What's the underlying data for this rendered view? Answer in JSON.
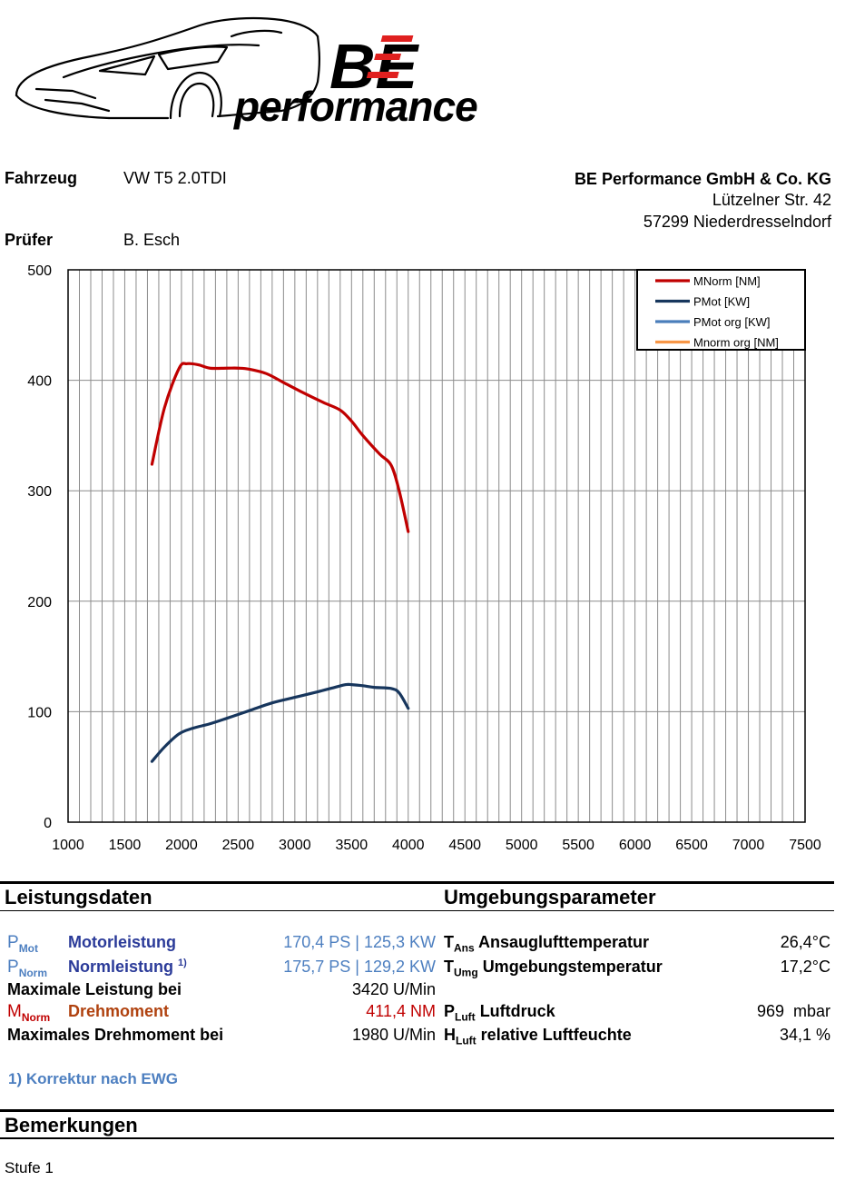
{
  "logo": {
    "monogram": "BE",
    "wordmark": "performance"
  },
  "header": {
    "vehicle_label": "Fahrzeug",
    "vehicle_value": "VW T5 2.0TDI",
    "tester_label": "Prüfer",
    "tester_value": "B. Esch",
    "company": {
      "name": "BE Performance GmbH & Co. KG",
      "street": "Lützelner Str. 42",
      "city": "57299 Niederdresselndorf"
    }
  },
  "chart_data": {
    "type": "line",
    "xlim": [
      1000,
      7500
    ],
    "ylim": [
      0,
      500
    ],
    "x_ticks": [
      "1000",
      "1500",
      "2000",
      "2500",
      "3000",
      "3500",
      "4000",
      "4500",
      "5000",
      "5500",
      "6000",
      "6500",
      "7000",
      "7500"
    ],
    "y_ticks": [
      "0",
      "100",
      "200",
      "300",
      "400",
      "500"
    ],
    "grid": true,
    "legend_position": "top-right",
    "legend": [
      "MNorm [NM]",
      "PMot [KW]",
      "PMot org [KW]",
      "Mnorm org [NM]"
    ],
    "colors": {
      "MNorm": "#c00000",
      "PMot": "#17365d",
      "PMot_org": "#4a7ebb",
      "Mnorm_org": "#f79646"
    },
    "series": [
      {
        "name": "MNorm [NM]",
        "x": [
          1740,
          1850,
          1980,
          2050,
          2150,
          2250,
          2400,
          2500,
          2600,
          2750,
          2900,
          3050,
          3250,
          3400,
          3500,
          3600,
          3750,
          3850,
          3920,
          4000
        ],
        "y": [
          324,
          375,
          411,
          415,
          414,
          411,
          411,
          411,
          410,
          406,
          398,
          390,
          380,
          373,
          363,
          350,
          333,
          323,
          300,
          263
        ]
      },
      {
        "name": "PMot [KW]",
        "x": [
          1740,
          1850,
          1980,
          2100,
          2250,
          2400,
          2600,
          2800,
          3000,
          3200,
          3350,
          3450,
          3500,
          3600,
          3700,
          3850,
          3920,
          4000
        ],
        "y": [
          55,
          68,
          80,
          85,
          89,
          94,
          101,
          108,
          113,
          118,
          122,
          124.5,
          124.5,
          123.5,
          122,
          121,
          117,
          103
        ]
      },
      {
        "name": "PMot org [KW]",
        "x": [],
        "y": []
      },
      {
        "name": "Mnorm org [NM]",
        "x": [],
        "y": []
      }
    ]
  },
  "performance": {
    "title": "Leistungsdaten",
    "pmot": {
      "sym": "P",
      "sub": "Mot",
      "label": "Motorleistung",
      "value": "170,4 PS | 125,3 KW"
    },
    "pnorm": {
      "sym": "P",
      "sub": "Norm",
      "label": "Normleistung",
      "sup": "1)",
      "value": "175,7 PS | 129,2 KW"
    },
    "max_power_label": "Maximale Leistung bei",
    "max_power_value": "3420 U/Min",
    "mnorm": {
      "sym": "M",
      "sub": "Norm",
      "label": "Drehmoment",
      "value": "411,4 NM"
    },
    "max_torque_label": "Maximales Drehmoment bei",
    "max_torque_value": "1980 U/Min",
    "footnote": "1) Korrektur nach EWG"
  },
  "environment": {
    "title": "Umgebungsparameter",
    "tans": {
      "sym": "T",
      "sub": "Ans",
      "label": "Ansauglufttemperatur",
      "value": "26,4°C"
    },
    "tumg": {
      "sym": "T",
      "sub": "Umg",
      "label": "Umgebungstemperatur",
      "value": "17,2°C"
    },
    "pluft": {
      "sym": "P",
      "sub": "Luft",
      "label": "Luftdruck",
      "value": "969  mbar"
    },
    "hluft": {
      "sym": "H",
      "sub": "Luft",
      "label": "relative Luftfeuchte",
      "value": "34,1 %"
    }
  },
  "remarks": {
    "title": "Bemerkungen",
    "text": "Stufe 1"
  }
}
